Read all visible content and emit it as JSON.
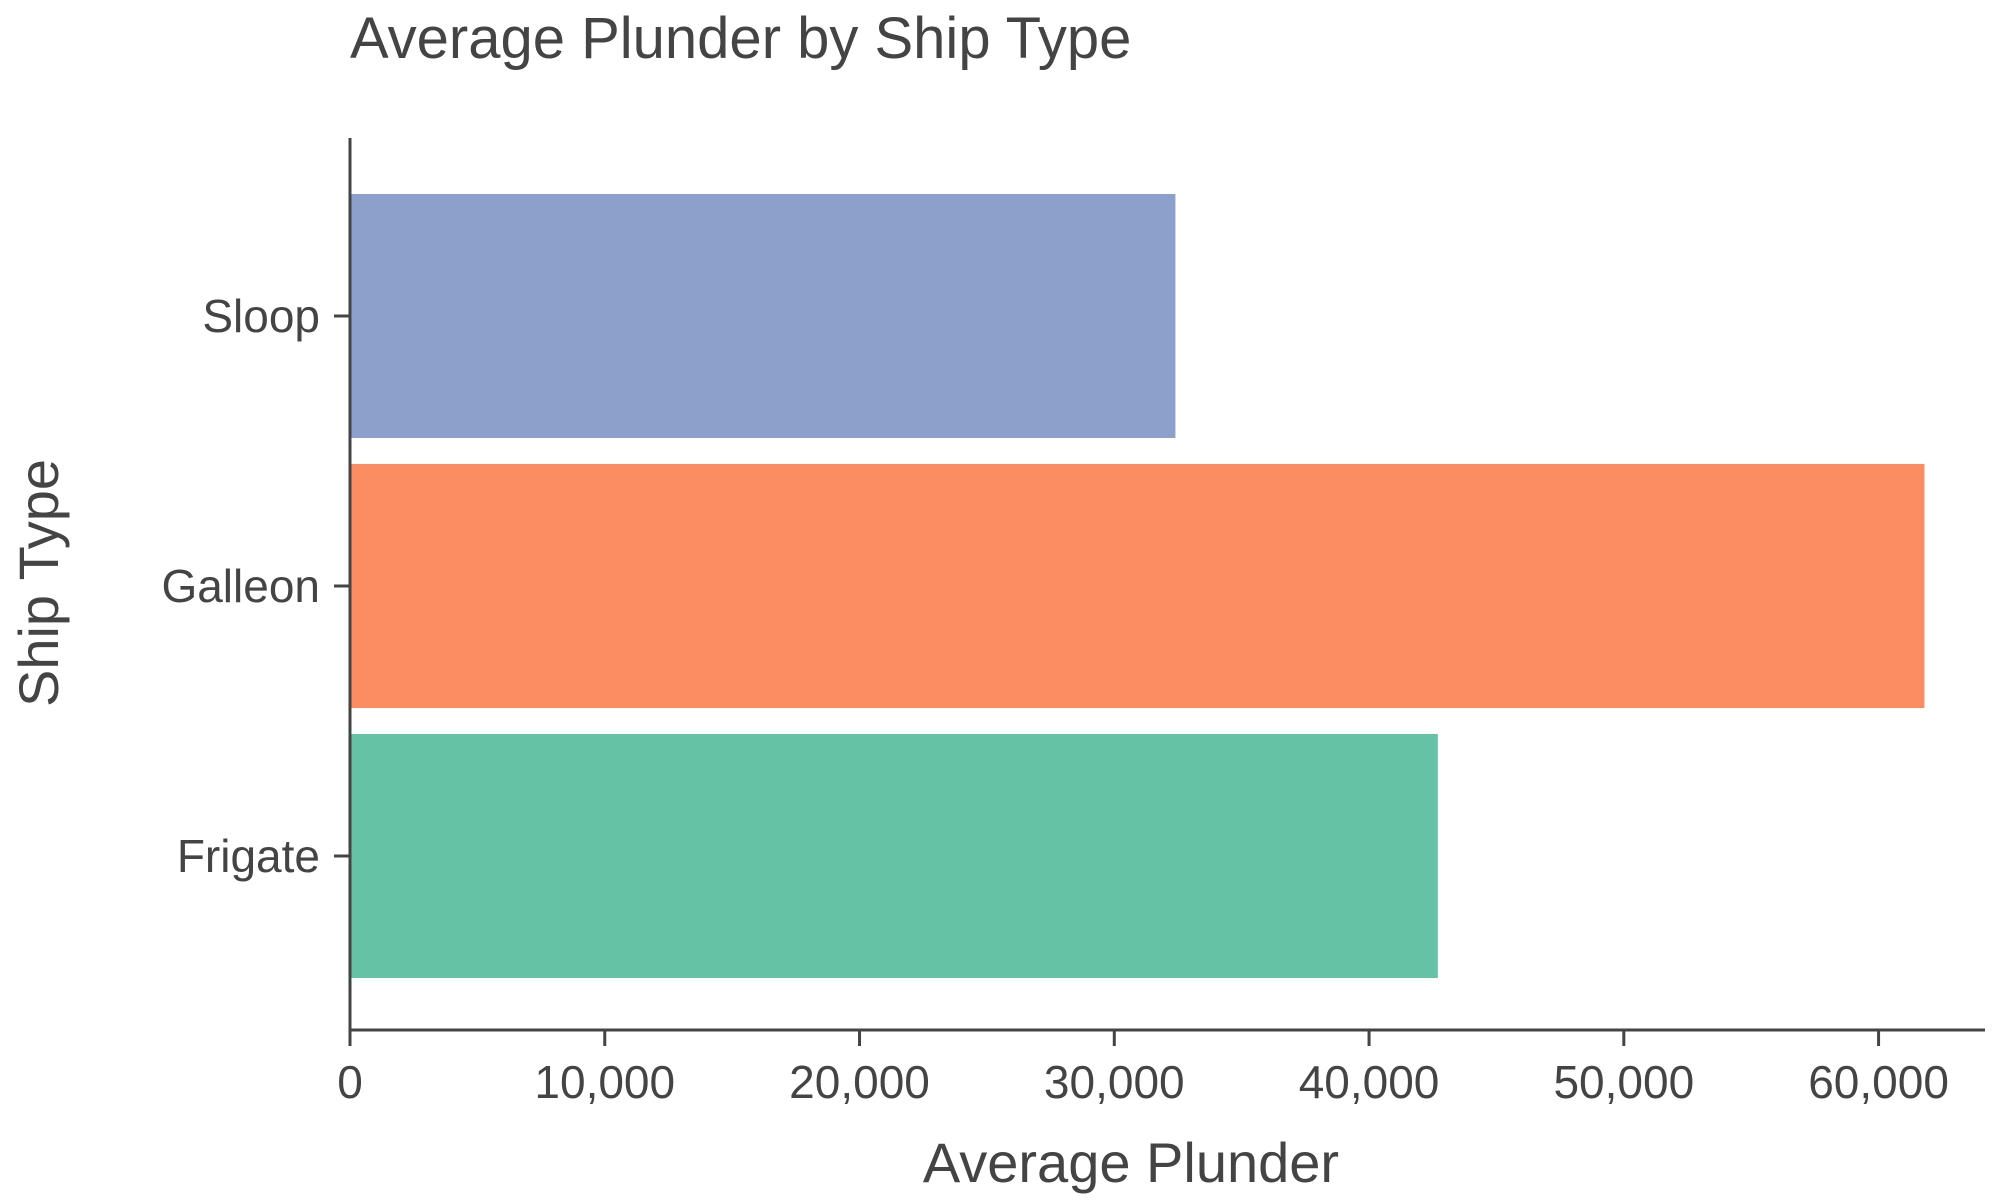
{
  "chart_data": {
    "type": "bar",
    "orientation": "horizontal",
    "title": "Average Plunder by Ship Type",
    "xlabel": "Average Plunder",
    "ylabel": "Ship Type",
    "categories": [
      "Sloop",
      "Galleon",
      "Frigate"
    ],
    "values": [
      32400,
      61800,
      42700
    ],
    "colors": [
      "#8da0cb",
      "#fc8d62",
      "#66c2a5"
    ],
    "xlim": [
      0,
      65000
    ],
    "xticks": [
      0,
      10000,
      20000,
      30000,
      40000,
      50000,
      60000
    ],
    "xtick_labels": [
      "0",
      "10,000",
      "20,000",
      "30,000",
      "40,000",
      "50,000",
      "60,000"
    ],
    "grid": false,
    "axis_color": "#444444"
  }
}
